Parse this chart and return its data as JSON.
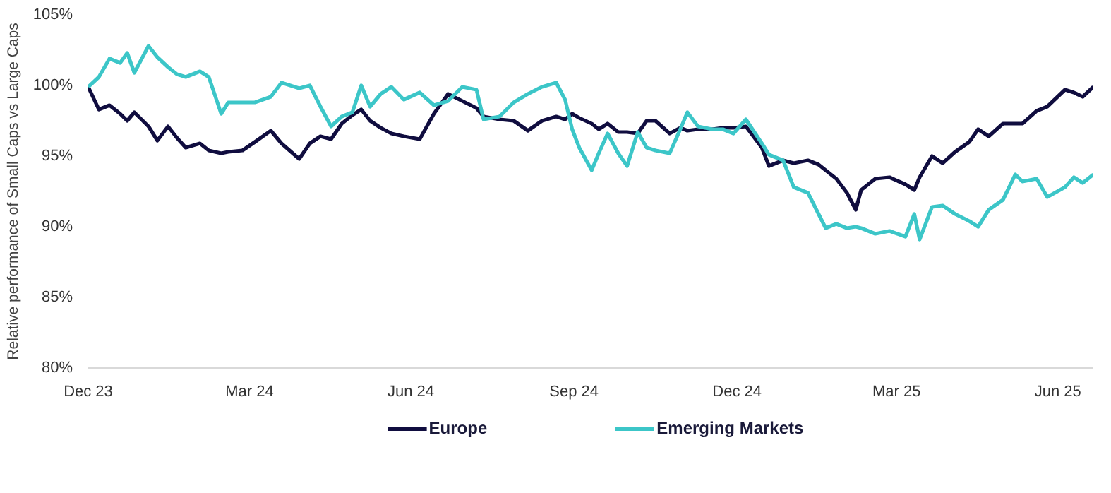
{
  "chart_data": {
    "type": "line",
    "ylabel": "Relative performance of Small Caps vs Large Caps",
    "x": [
      "2023-12-31",
      "2024-01-06",
      "2024-01-12",
      "2024-01-18",
      "2024-01-22",
      "2024-01-26",
      "2024-02-03",
      "2024-02-08",
      "2024-02-14",
      "2024-02-19",
      "2024-02-24",
      "2024-03-03",
      "2024-03-08",
      "2024-03-15",
      "2024-03-19",
      "2024-03-27",
      "2024-04-03",
      "2024-04-12",
      "2024-04-18",
      "2024-04-28",
      "2024-05-04",
      "2024-05-10",
      "2024-05-16",
      "2024-05-22",
      "2024-05-28",
      "2024-06-02",
      "2024-06-07",
      "2024-06-13",
      "2024-06-19",
      "2024-06-26",
      "2024-07-05",
      "2024-07-13",
      "2024-07-21",
      "2024-07-29",
      "2024-08-06",
      "2024-08-10",
      "2024-08-19",
      "2024-08-27",
      "2024-09-04",
      "2024-09-12",
      "2024-09-20",
      "2024-09-25",
      "2024-09-29",
      "2024-10-03",
      "2024-10-10",
      "2024-10-14",
      "2024-10-19",
      "2024-10-25",
      "2024-10-30",
      "2024-11-05",
      "2024-11-10",
      "2024-11-15",
      "2024-11-23",
      "2024-11-29",
      "2024-12-03",
      "2024-12-09",
      "2024-12-17",
      "2024-12-23",
      "2024-12-29",
      "2025-01-05",
      "2025-01-14",
      "2025-01-18",
      "2025-01-26",
      "2025-02-01",
      "2025-02-09",
      "2025-02-15",
      "2025-02-19",
      "2025-02-25",
      "2025-03-03",
      "2025-03-08",
      "2025-03-11",
      "2025-03-19",
      "2025-03-27",
      "2025-04-05",
      "2025-04-10",
      "2025-04-13",
      "2025-04-20",
      "2025-04-26",
      "2025-05-03",
      "2025-05-11",
      "2025-05-16",
      "2025-05-22",
      "2025-05-30",
      "2025-06-06",
      "2025-06-10",
      "2025-06-18",
      "2025-06-24",
      "2025-07-04",
      "2025-07-09",
      "2025-07-14",
      "2025-07-20"
    ],
    "series": [
      {
        "name": "Europe",
        "color": "#100d3f",
        "values": [
          99.9,
          98.3,
          98.6,
          98.0,
          97.5,
          98.1,
          97.1,
          96.1,
          97.1,
          96.3,
          95.6,
          95.9,
          95.4,
          95.2,
          95.3,
          95.4,
          96.0,
          96.8,
          95.9,
          94.8,
          95.9,
          96.4,
          96.2,
          97.3,
          97.9,
          98.3,
          97.5,
          97.0,
          96.6,
          96.4,
          96.2,
          98.0,
          99.4,
          98.9,
          98.4,
          97.8,
          97.6,
          97.5,
          96.8,
          97.5,
          97.8,
          97.6,
          98.0,
          97.7,
          97.3,
          96.9,
          97.3,
          96.7,
          96.7,
          96.6,
          97.5,
          97.5,
          96.6,
          97.0,
          96.8,
          96.9,
          96.9,
          97.0,
          97.0,
          97.1,
          95.6,
          94.3,
          94.7,
          94.5,
          94.7,
          94.4,
          94.0,
          93.4,
          92.4,
          91.2,
          92.6,
          93.4,
          93.5,
          93.0,
          92.6,
          93.5,
          95.0,
          94.5,
          95.3,
          96.0,
          96.9,
          96.4,
          97.3,
          97.3,
          97.3,
          98.2,
          98.5,
          99.7,
          99.5,
          99.2,
          99.9
        ]
      },
      {
        "name": "Emerging Markets",
        "color": "#3cc6c8",
        "values": [
          99.9,
          100.6,
          101.9,
          101.6,
          102.3,
          100.9,
          102.8,
          102.0,
          101.3,
          100.8,
          100.6,
          101.0,
          100.6,
          98.0,
          98.8,
          98.8,
          98.8,
          99.2,
          100.2,
          99.8,
          100.0,
          98.5,
          97.1,
          97.8,
          98.1,
          100.0,
          98.5,
          99.4,
          99.9,
          99.0,
          99.5,
          98.6,
          98.9,
          99.9,
          99.7,
          97.6,
          97.8,
          98.8,
          99.4,
          99.9,
          100.2,
          99.0,
          96.9,
          95.6,
          94.0,
          95.2,
          96.6,
          95.2,
          94.3,
          96.7,
          95.6,
          95.4,
          95.2,
          96.9,
          98.1,
          97.1,
          96.9,
          96.9,
          96.6,
          97.6,
          95.9,
          95.1,
          94.7,
          92.8,
          92.4,
          90.9,
          89.9,
          90.2,
          89.9,
          90.0,
          89.9,
          89.5,
          89.7,
          89.3,
          90.9,
          89.1,
          91.4,
          91.5,
          90.9,
          90.4,
          90.0,
          91.2,
          91.9,
          93.7,
          93.2,
          93.4,
          92.1,
          92.8,
          93.5,
          93.1,
          93.7
        ]
      }
    ],
    "xlim": [
      "2023-12-31",
      "2025-07-20"
    ],
    "xticks": [
      {
        "value": "2023-12-31",
        "label": "Dec 23"
      },
      {
        "value": "2024-03-31",
        "label": "Mar 24"
      },
      {
        "value": "2024-06-30",
        "label": "Jun 24"
      },
      {
        "value": "2024-09-30",
        "label": "Sep 24"
      },
      {
        "value": "2024-12-31",
        "label": "Dec 24"
      },
      {
        "value": "2025-03-31",
        "label": "Mar 25"
      },
      {
        "value": "2025-06-30",
        "label": "Jun 25"
      }
    ],
    "ylim": [
      80,
      105
    ],
    "yticks": [
      {
        "value": 80,
        "label": "80%"
      },
      {
        "value": 85,
        "label": "85%"
      },
      {
        "value": 90,
        "label": "90%"
      },
      {
        "value": 95,
        "label": "95%"
      },
      {
        "value": 100,
        "label": "100%"
      },
      {
        "value": 105,
        "label": "105%"
      }
    ],
    "legend": "bottom",
    "grid": false,
    "marker": "none",
    "line_style": "solid"
  }
}
